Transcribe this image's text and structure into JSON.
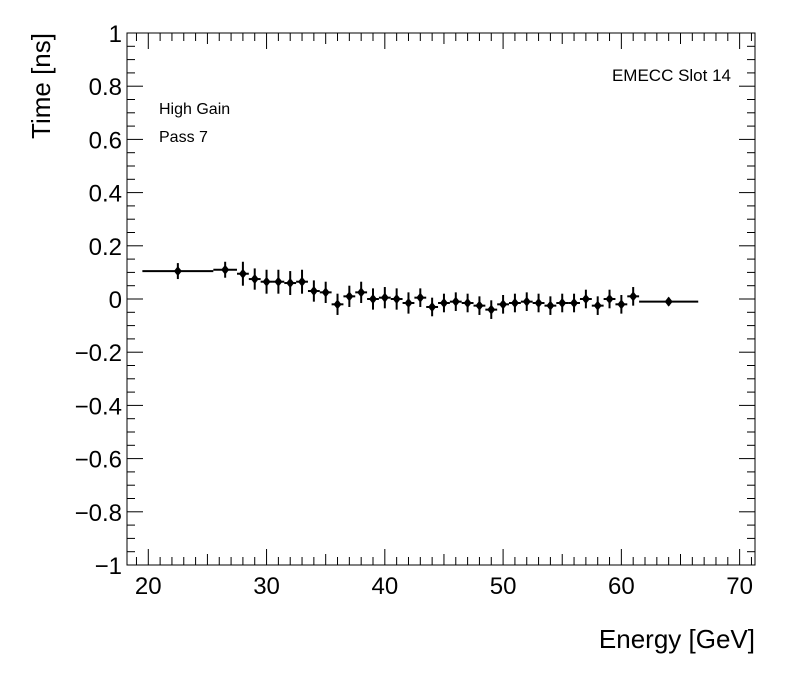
{
  "chart_data": {
    "type": "scatter",
    "title": "",
    "xlabel": "Energy [GeV]",
    "ylabel": "Time [ns]",
    "xlim": [
      18.2,
      71.3
    ],
    "ylim": [
      -1,
      1
    ],
    "xticks": [
      "20",
      "30",
      "40",
      "50",
      "60",
      "70"
    ],
    "xtick_values": [
      20,
      30,
      40,
      50,
      60,
      70
    ],
    "yticks": [
      "1",
      "0.8",
      "0.6",
      "0.4",
      "0.2",
      "0",
      "−0.2",
      "−0.4",
      "−0.6",
      "−0.8",
      "−1"
    ],
    "ytick_values": [
      1,
      0.8,
      0.6,
      0.4,
      0.2,
      0,
      -0.2,
      -0.4,
      -0.6,
      -0.8,
      -1
    ],
    "annotations": [
      "EMECC Slot 14",
      "High Gain",
      "Pass 7"
    ],
    "points": [
      {
        "x": 22.5,
        "xlo": 19.5,
        "xhi": 25.5,
        "y": 0.105,
        "err": 0.03
      },
      {
        "x": 26.5,
        "xlo": 25.5,
        "xhi": 27.5,
        "y": 0.11,
        "err": 0.03
      },
      {
        "x": 28,
        "y": 0.095,
        "err": 0.045
      },
      {
        "x": 29,
        "y": 0.075,
        "err": 0.04
      },
      {
        "x": 30,
        "y": 0.065,
        "err": 0.045
      },
      {
        "x": 31,
        "y": 0.065,
        "err": 0.045
      },
      {
        "x": 32,
        "y": 0.06,
        "err": 0.045
      },
      {
        "x": 33,
        "y": 0.065,
        "err": 0.045
      },
      {
        "x": 34,
        "y": 0.03,
        "err": 0.04
      },
      {
        "x": 35,
        "y": 0.025,
        "err": 0.04
      },
      {
        "x": 36,
        "y": -0.02,
        "err": 0.04
      },
      {
        "x": 37,
        "y": 0.01,
        "err": 0.04
      },
      {
        "x": 38,
        "y": 0.025,
        "err": 0.04
      },
      {
        "x": 39,
        "y": 0.0,
        "err": 0.04
      },
      {
        "x": 40,
        "y": 0.005,
        "err": 0.04
      },
      {
        "x": 41,
        "y": 0.0,
        "err": 0.04
      },
      {
        "x": 42,
        "y": -0.015,
        "err": 0.04
      },
      {
        "x": 43,
        "y": 0.005,
        "err": 0.035
      },
      {
        "x": 44,
        "y": -0.03,
        "err": 0.035
      },
      {
        "x": 45,
        "y": -0.015,
        "err": 0.035
      },
      {
        "x": 46,
        "y": -0.01,
        "err": 0.035
      },
      {
        "x": 47,
        "y": -0.015,
        "err": 0.035
      },
      {
        "x": 48,
        "y": -0.025,
        "err": 0.035
      },
      {
        "x": 49,
        "y": -0.04,
        "err": 0.035
      },
      {
        "x": 50,
        "y": -0.02,
        "err": 0.035
      },
      {
        "x": 51,
        "y": -0.015,
        "err": 0.035
      },
      {
        "x": 52,
        "y": -0.01,
        "err": 0.035
      },
      {
        "x": 53,
        "y": -0.015,
        "err": 0.035
      },
      {
        "x": 54,
        "y": -0.025,
        "err": 0.035
      },
      {
        "x": 55,
        "y": -0.015,
        "err": 0.035
      },
      {
        "x": 56,
        "y": -0.015,
        "err": 0.035
      },
      {
        "x": 57,
        "y": 0.0,
        "err": 0.035
      },
      {
        "x": 58,
        "y": -0.025,
        "err": 0.035
      },
      {
        "x": 59,
        "y": 0.0,
        "err": 0.035
      },
      {
        "x": 60,
        "y": -0.02,
        "err": 0.035
      },
      {
        "x": 61,
        "y": 0.01,
        "err": 0.035
      },
      {
        "x": 64,
        "xlo": 61.5,
        "xhi": 66.5,
        "y": -0.01,
        "err": 0.015
      }
    ]
  }
}
